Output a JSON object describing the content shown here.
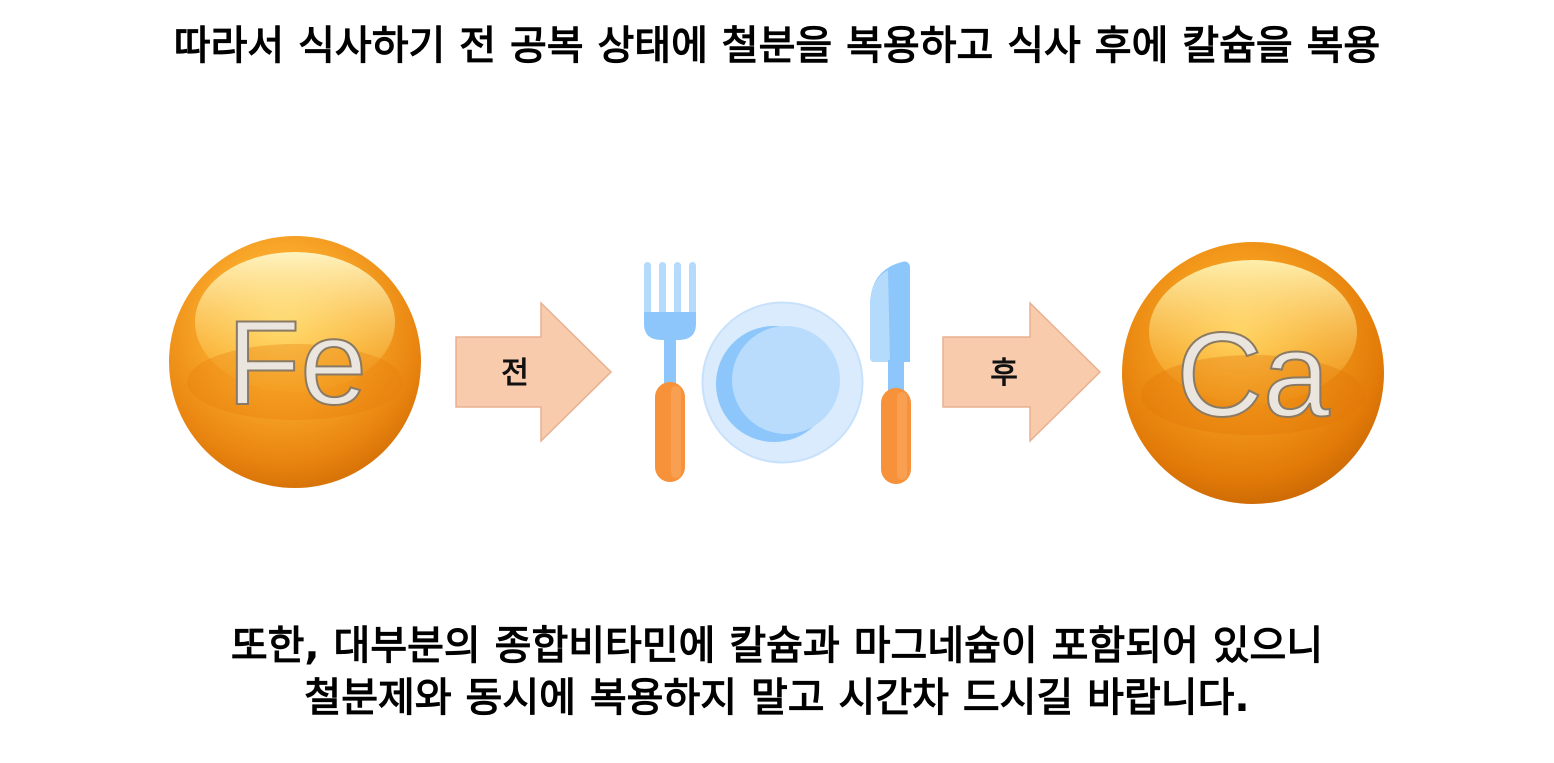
{
  "headings": {
    "top": "따라서 식사하기 전 공복 상태에 철분을 복용하고 식사 후에 칼슘을 복용",
    "bottom_line_1": "또한, 대부분의 종합비타민에 칼슘과 마그네슘이 포함되어 있으니",
    "bottom_line_2": "철분제와 동시에 복용하지 말고 시간차 드시길 바랍니다."
  },
  "diagram": {
    "iron_symbol": "Fe",
    "calcium_symbol": "Ca",
    "before_label": "전",
    "after_label": "후",
    "icons": [
      "fork-icon",
      "plate-icon",
      "knife-icon"
    ]
  },
  "colors": {
    "sphere_orange": "#f59a1b",
    "arrow_fill": "#f8cbad",
    "utensil_blue": "#8cc6fb",
    "utensil_handle": "#f7913a",
    "plate_light": "#d9ebfd"
  }
}
